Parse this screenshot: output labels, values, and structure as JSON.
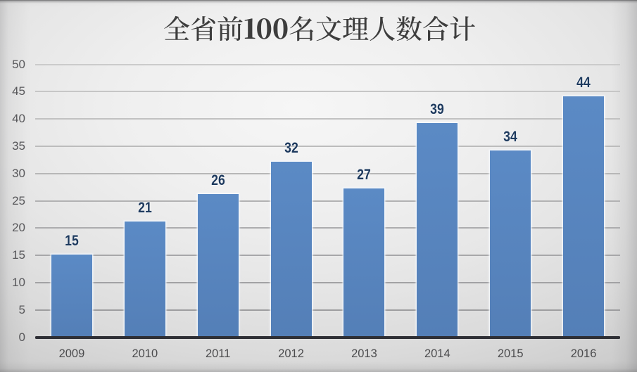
{
  "chart_data": {
    "type": "bar",
    "title": "全省前100名文理人数合计",
    "categories": [
      "2009",
      "2010",
      "2011",
      "2012",
      "2013",
      "2014",
      "2015",
      "2016"
    ],
    "values": [
      15,
      21,
      26,
      32,
      27,
      39,
      34,
      44
    ],
    "data_labels": [
      "15",
      "21",
      "26",
      "32",
      "27",
      "39",
      "34",
      "44"
    ],
    "xlabel": "",
    "ylabel": "",
    "ylim": [
      0,
      50
    ],
    "ytick_step": 5,
    "yticks": [
      0,
      5,
      10,
      15,
      20,
      25,
      30,
      35,
      40,
      45,
      50
    ],
    "grid": true,
    "legend": false,
    "colors": {
      "bar": "#5b8ac5",
      "data_label": "#1e3a5e",
      "title": "#3d3d3d",
      "axis_line": "#2e2f35",
      "gridline": "#a9a9a9",
      "y_tick_label": "#57575a",
      "x_tick_label": "#4b4b4d",
      "background": "#e9e9e9"
    }
  }
}
